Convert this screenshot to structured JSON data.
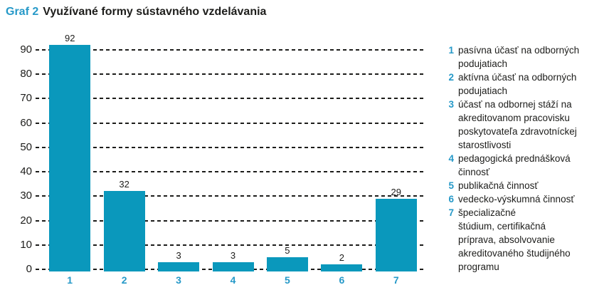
{
  "title": {
    "prefix": "Graf 2",
    "text": "Využívané formy sústavného vzdelávania"
  },
  "colors": {
    "accent": "#2699c8",
    "bar": "#0a98bc",
    "ink": "#1d1d1b"
  },
  "chart_data": {
    "type": "bar",
    "title": "Graf 2 Využívané formy sústavného vzdelávania",
    "categories": [
      "1",
      "2",
      "3",
      "4",
      "5",
      "6",
      "7"
    ],
    "values": [
      92,
      32,
      3,
      3,
      5,
      2,
      29
    ],
    "xlabel": "",
    "ylabel": "",
    "ylim": [
      0,
      95
    ],
    "yticks": [
      0,
      10,
      20,
      30,
      40,
      50,
      60,
      70,
      80,
      90
    ],
    "grid": "horizontal-dashed",
    "bar_color": "#0a98bc",
    "data_labels": true,
    "legend_position": "right"
  },
  "legend": {
    "items": [
      {
        "num": "1",
        "label": "pasívna účasť na odborných\npodujatiach"
      },
      {
        "num": "2",
        "label": "aktívna účasť na odborných\npodujatiach"
      },
      {
        "num": "3",
        "label": "účasť na odbornej stáží na\nakreditovanom pracovisku\nposkytovateľa zdravotníckej\nstarostlivosti"
      },
      {
        "num": "4",
        "label": "pedagogická prednášková\nčinnosť"
      },
      {
        "num": "5",
        "label": "publikačná činnosť"
      },
      {
        "num": "6",
        "label": "vedecko-výskumná činnosť"
      },
      {
        "num": "7",
        "label": "špecializačné\nštúdium, certifikačná\npríprava, absolvovanie\nakreditovaného študijného\nprogramu"
      }
    ]
  }
}
